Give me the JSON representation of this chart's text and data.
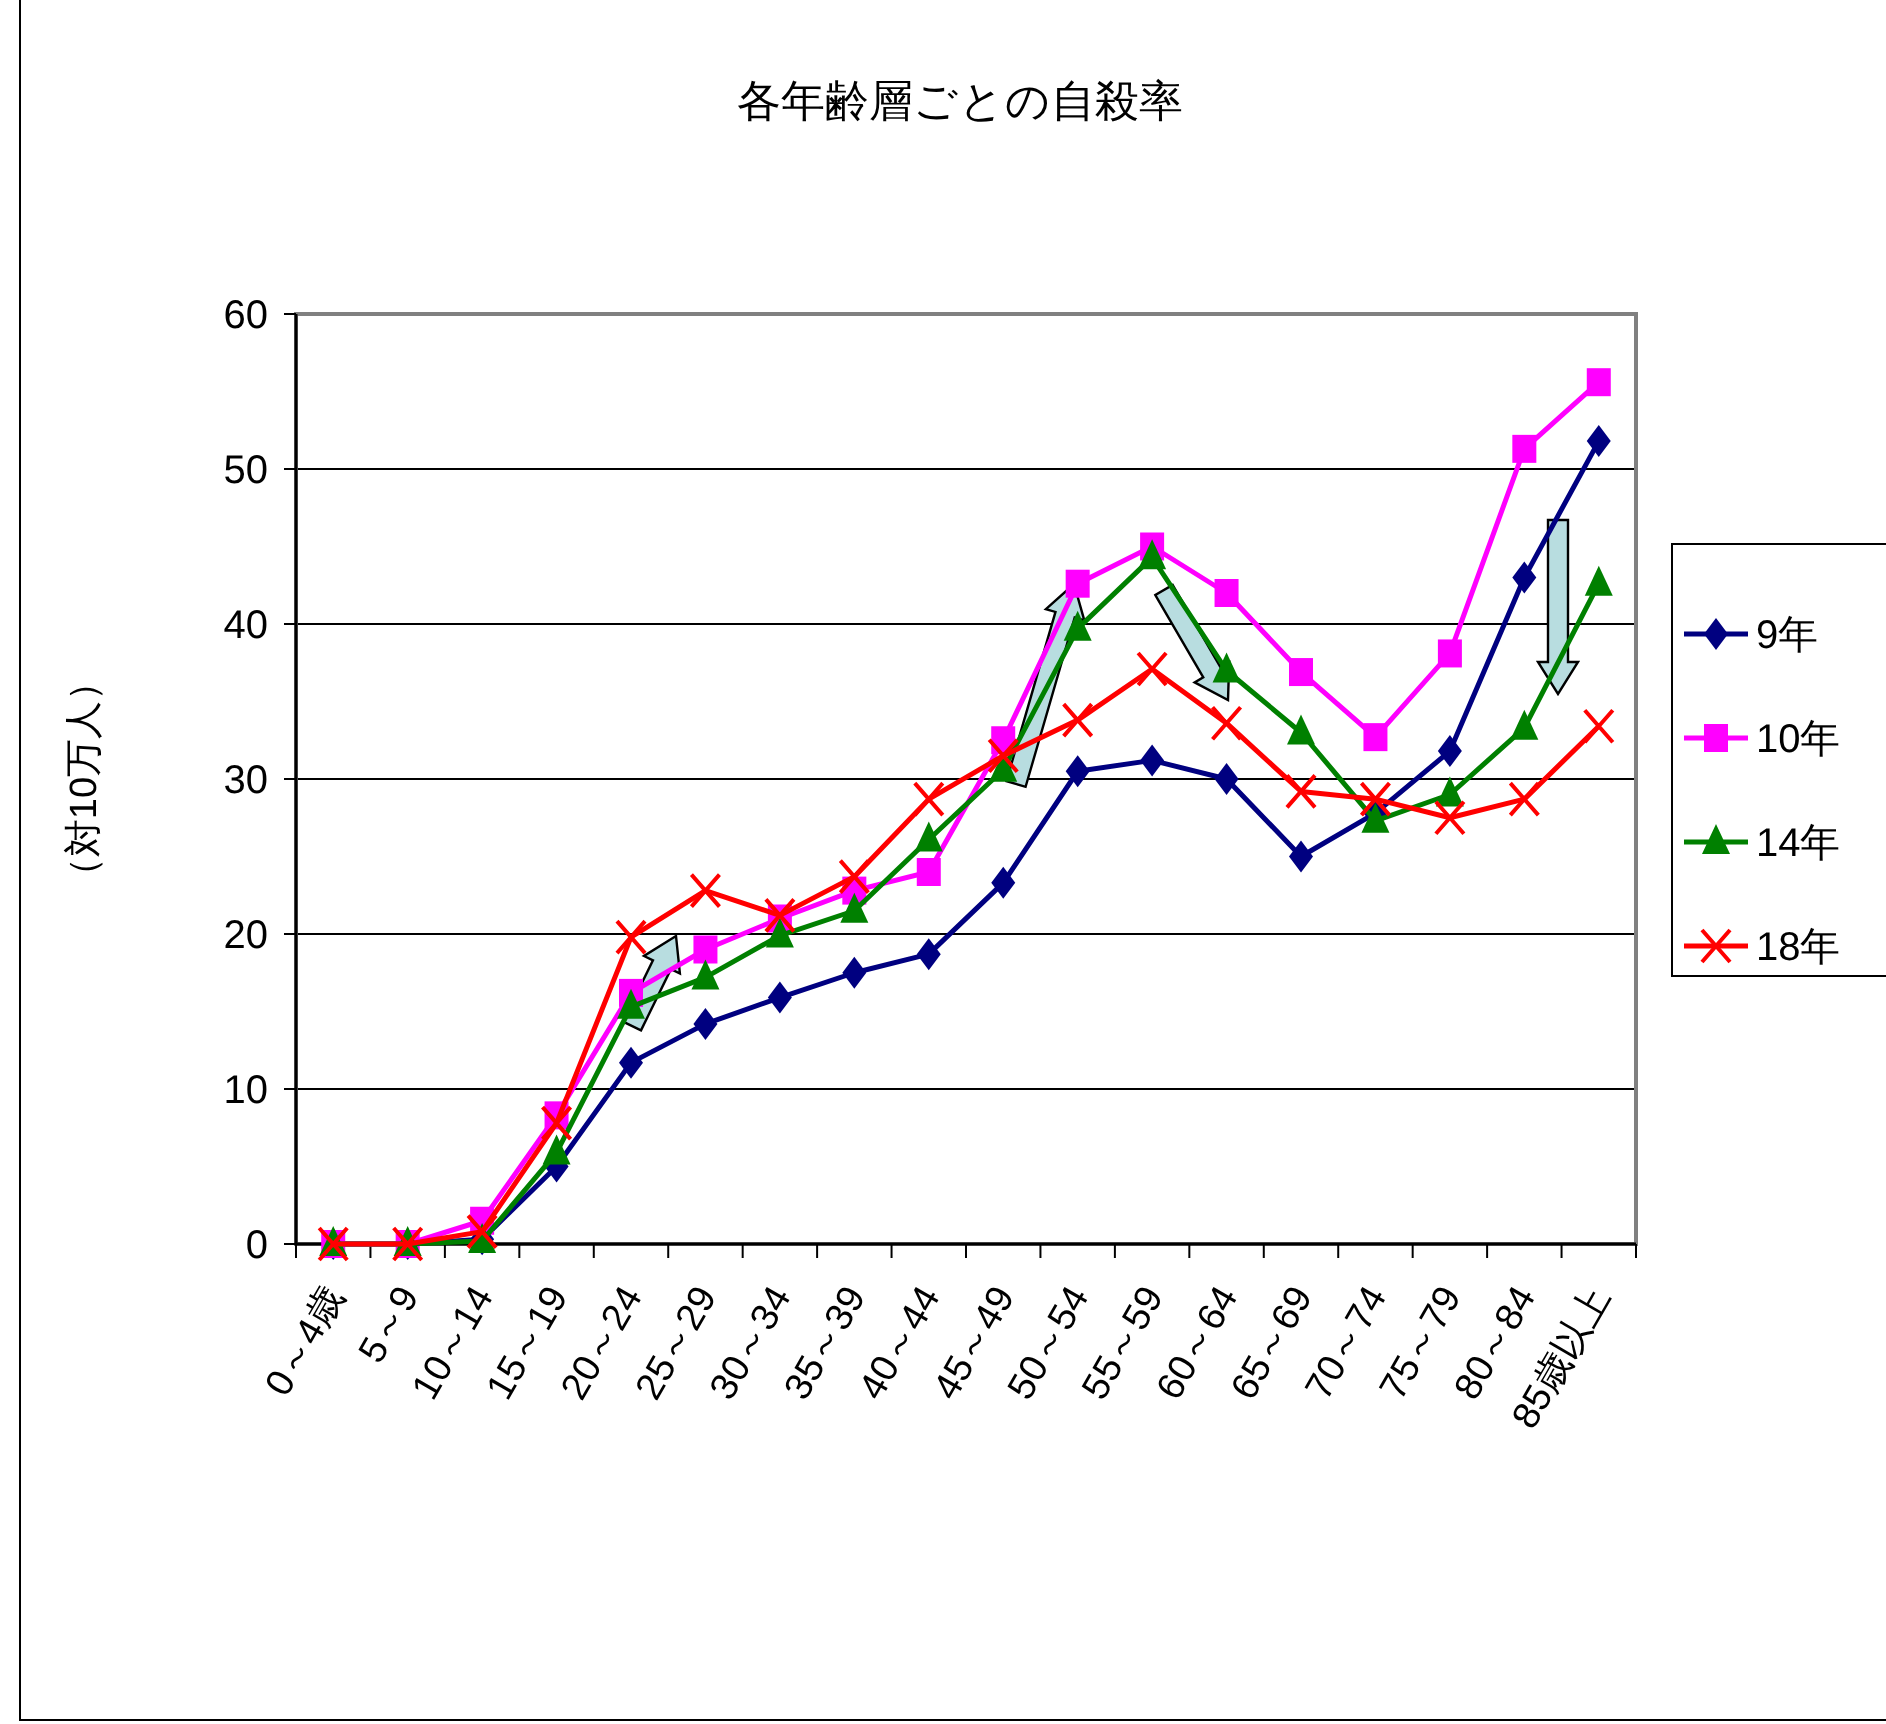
{
  "chart_data": {
    "type": "line",
    "title": "各年齢層ごとの自殺率",
    "ylabel": "（対10万人）",
    "categories": [
      "0～4歳",
      "5～9",
      "10～14",
      "15～19",
      "20～24",
      "25～29",
      "30～34",
      "35～39",
      "40～44",
      "45～49",
      "50～54",
      "55～59",
      "60～64",
      "65～69",
      "70～74",
      "75～79",
      "80～84",
      "85歳以上"
    ],
    "series": [
      {
        "name": "9年",
        "color": "#000080",
        "marker": "diamond",
        "values": [
          0,
          0,
          0.3,
          5.0,
          11.7,
          14.2,
          15.9,
          17.5,
          18.7,
          23.3,
          30.5,
          31.2,
          30.0,
          25.0,
          27.8,
          31.8,
          43.0,
          51.8
        ]
      },
      {
        "name": "10年",
        "color": "#ff00ff",
        "marker": "square",
        "values": [
          0,
          0,
          1.5,
          8.3,
          16.2,
          19.0,
          21.0,
          22.8,
          24.0,
          32.5,
          42.6,
          45.0,
          42.0,
          36.9,
          32.7,
          38.1,
          51.3,
          55.6
        ]
      },
      {
        "name": "14年",
        "color": "#008000",
        "marker": "triangle",
        "values": [
          0,
          0,
          0.2,
          5.9,
          15.3,
          17.2,
          19.9,
          21.5,
          26.1,
          30.6,
          39.7,
          44.3,
          37.0,
          33.0,
          27.3,
          29.0,
          33.3,
          42.6
        ]
      },
      {
        "name": "18年",
        "color": "#ff0000",
        "marker": "cross",
        "values": [
          0,
          0,
          0.8,
          7.8,
          19.8,
          22.8,
          21.2,
          23.7,
          28.7,
          31.5,
          33.8,
          37.1,
          33.6,
          29.2,
          28.7,
          27.5,
          28.7,
          33.4
        ]
      }
    ],
    "ylim": [
      0,
      60
    ],
    "yticks": [
      0,
      10,
      20,
      30,
      40,
      50,
      60
    ],
    "grid": "y",
    "legend": "right"
  }
}
